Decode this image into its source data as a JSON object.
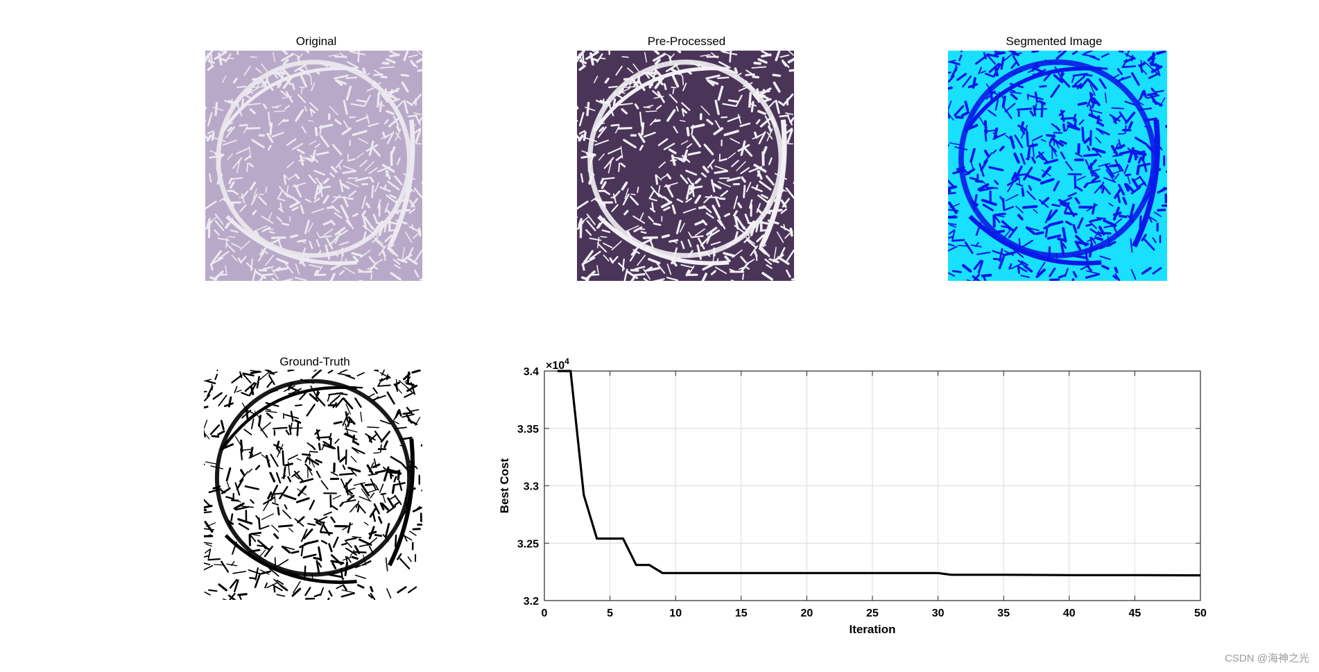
{
  "panels": {
    "original": {
      "title": "Original"
    },
    "preprocessed": {
      "title": "Pre-Processed"
    },
    "segmented": {
      "title": "Segmented Image"
    },
    "ground_truth": {
      "title": "Ground-Truth"
    }
  },
  "colors": {
    "original_bg": "#b9a9c9",
    "original_mesh": "#eceaf0",
    "preprocessed_bg": "#4a3458",
    "preprocessed_mesh": "#f2f0f4",
    "segmented_bg": "#19e0ff",
    "segmented_mesh": "#0a18e8",
    "ground_truth_bg": "#ffffff",
    "ground_truth_mesh": "#000000",
    "line": "#000000",
    "grid": "#dcdcdc"
  },
  "chart_data": {
    "type": "line",
    "xlabel": "Iteration",
    "ylabel": "Best Cost",
    "exponent_label": "×10",
    "exponent_power": "4",
    "xlim": [
      0,
      50
    ],
    "ylim": [
      3.2,
      3.4
    ],
    "xticks": [
      "0",
      "5",
      "10",
      "15",
      "20",
      "25",
      "30",
      "35",
      "40",
      "45",
      "50"
    ],
    "yticks": [
      "3.2",
      "3.25",
      "3.3",
      "3.35",
      "3.4"
    ],
    "grid": true,
    "series": [
      {
        "x": [
          1,
          2,
          3,
          4,
          5,
          6,
          7,
          8,
          9,
          10,
          15,
          20,
          25,
          30,
          31,
          35,
          40,
          45,
          50
        ],
        "y": [
          3.4,
          3.4,
          3.292,
          3.254,
          3.254,
          3.254,
          3.231,
          3.231,
          3.224,
          3.224,
          3.224,
          3.224,
          3.224,
          3.224,
          3.2225,
          3.2225,
          3.2222,
          3.2222,
          3.222
        ]
      }
    ]
  },
  "watermark": "CSDN @海神之光"
}
